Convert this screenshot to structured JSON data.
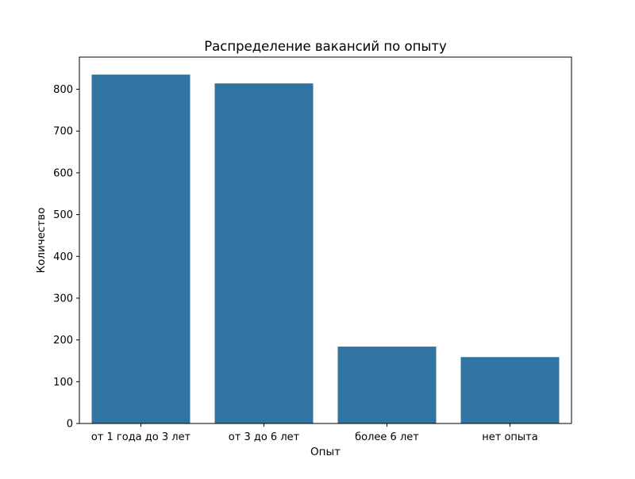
{
  "chart_data": {
    "type": "bar",
    "title": "Распределение вакансий по опыту",
    "xlabel": "Опыт",
    "ylabel": "Количество",
    "categories": [
      "от 1 года до 3 лет",
      "от 3 до 6 лет",
      "более 6 лет",
      "нет опыта"
    ],
    "values": [
      835,
      814,
      184,
      159
    ],
    "ylim": [
      0,
      877
    ],
    "yticks": [
      0,
      100,
      200,
      300,
      400,
      500,
      600,
      700,
      800
    ],
    "grid": false,
    "legend": "none",
    "bar_color": "#3274a1"
  }
}
